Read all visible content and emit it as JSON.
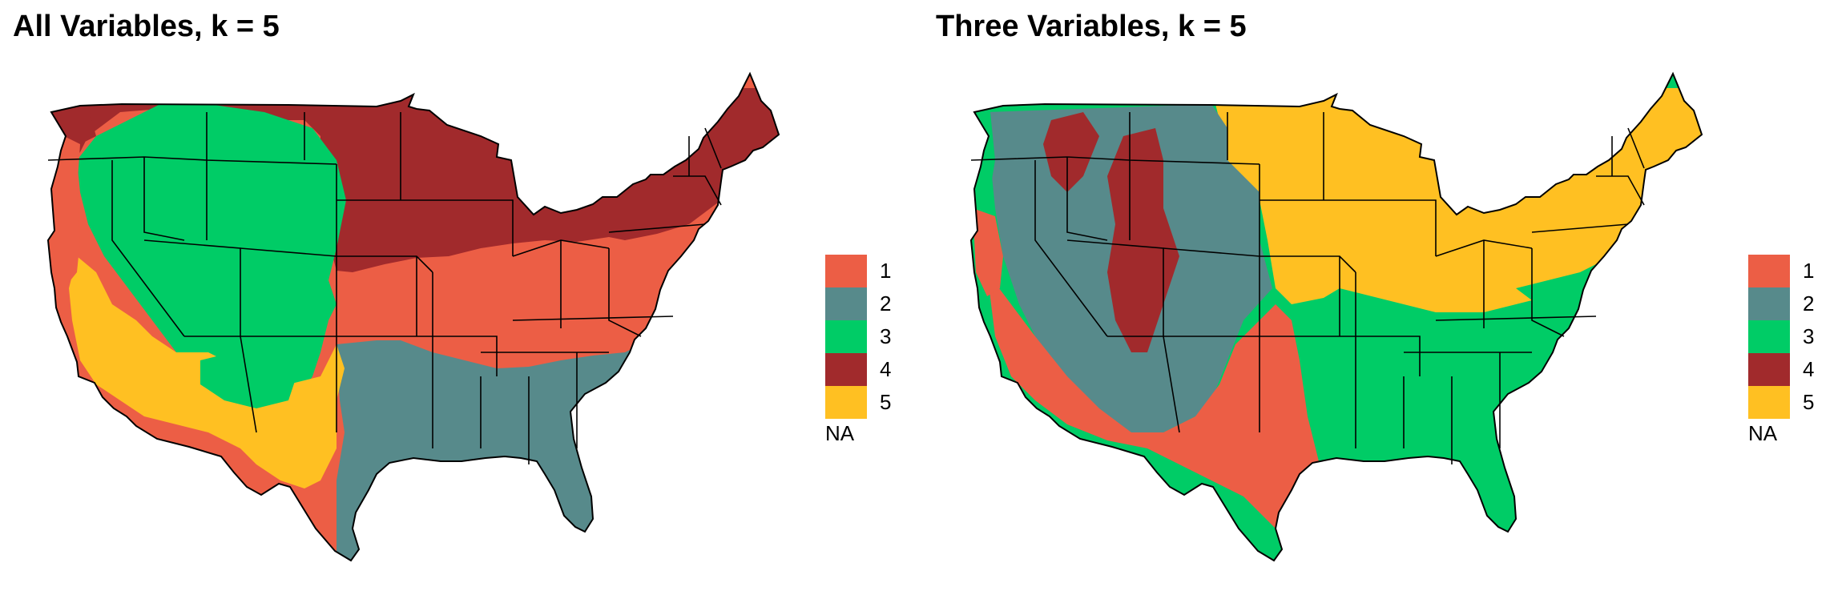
{
  "colors": {
    "c1": "#EC5E45",
    "c2": "#578A8B",
    "c3": "#00CC66",
    "c4": "#A12A2C",
    "c5": "#FFC022",
    "border": "#000000"
  },
  "panels": [
    {
      "title": "All Variables, k = 5"
    },
    {
      "title": "Three Variables, k = 5"
    }
  ],
  "legend": {
    "items": [
      {
        "label": "1",
        "color": "#EC5E45"
      },
      {
        "label": "2",
        "color": "#578A8B"
      },
      {
        "label": "3",
        "color": "#00CC66"
      },
      {
        "label": "4",
        "color": "#A12A2C"
      },
      {
        "label": "5",
        "color": "#FFC022"
      }
    ],
    "na_label": "NA"
  }
}
